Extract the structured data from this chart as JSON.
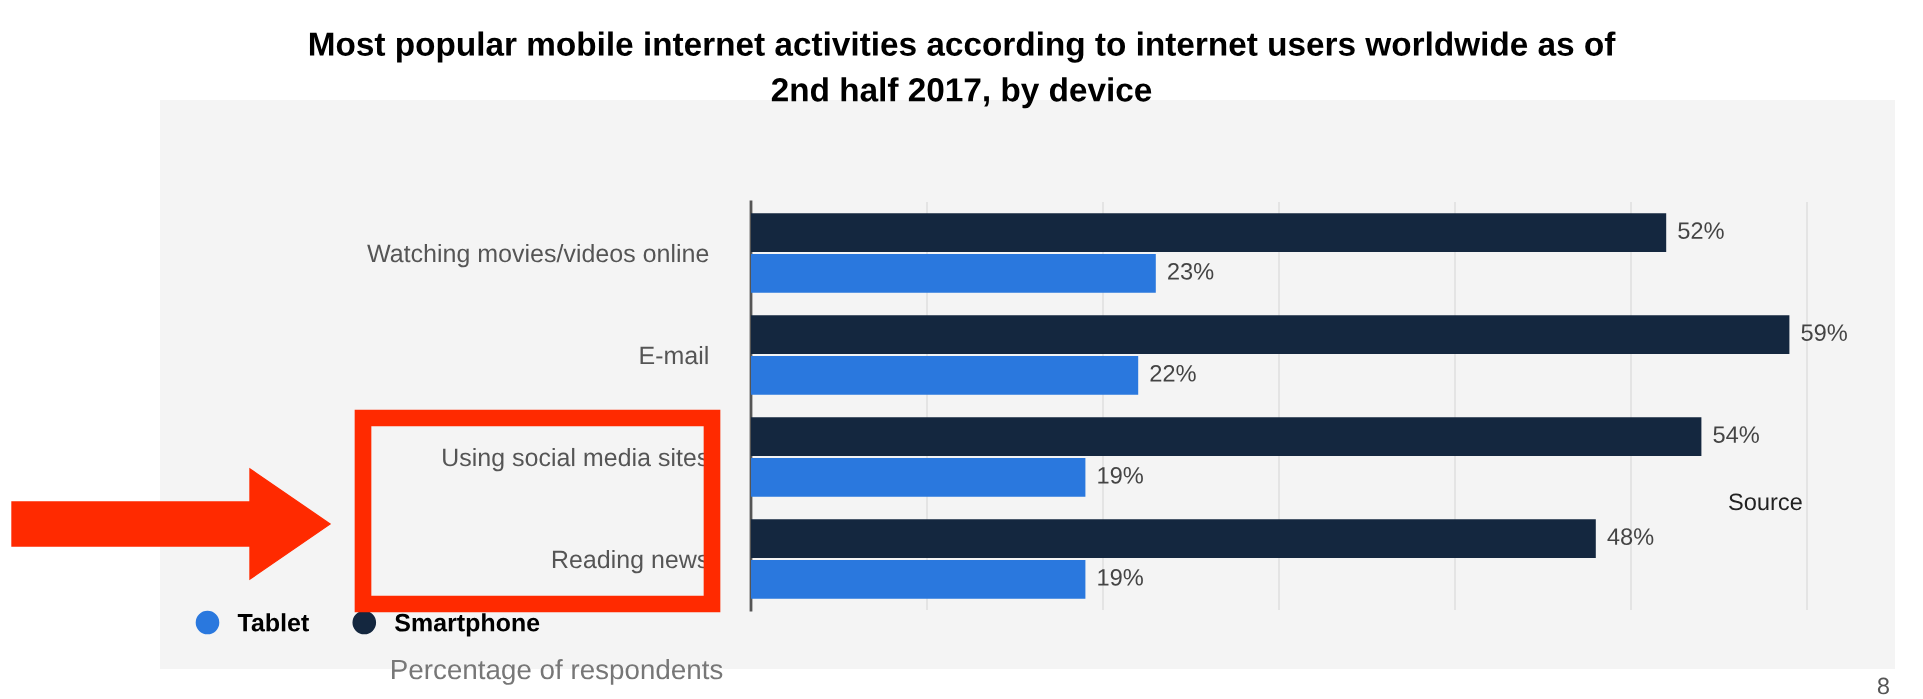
{
  "chart_data": {
    "type": "bar",
    "orientation": "horizontal",
    "title": "Most popular mobile internet activities according to internet users worldwide as of\n2nd half 2017, by device",
    "xlabel": "Percentage of respondents",
    "categories": [
      "Watching movies/videos online",
      "E-mail",
      "Using social media sites",
      "Reading news"
    ],
    "series": [
      {
        "name": "Tablet",
        "color": "#2a78de",
        "values": [
          23,
          22,
          19,
          19
        ],
        "value_labels": [
          "23%",
          "22%",
          "19%",
          "19%"
        ]
      },
      {
        "name": "Smartphone",
        "color": "#14273f",
        "values": [
          52,
          59,
          54,
          48
        ],
        "value_labels": [
          "52%",
          "59%",
          "54%",
          "48%"
        ]
      }
    ],
    "xlim": [
      0,
      65
    ],
    "xticks": [
      {
        "value": 0,
        "label": null
      },
      {
        "value": 10,
        "label": null
      },
      {
        "value": 20,
        "label": null
      },
      {
        "value": 30,
        "label": null
      },
      {
        "value": 40,
        "label": null
      },
      {
        "value": 50,
        "label": null
      },
      {
        "value": 60,
        "label": null
      }
    ],
    "grid": "x",
    "legend": "bottom left",
    "annotations": [
      "Source",
      "8"
    ]
  }
}
